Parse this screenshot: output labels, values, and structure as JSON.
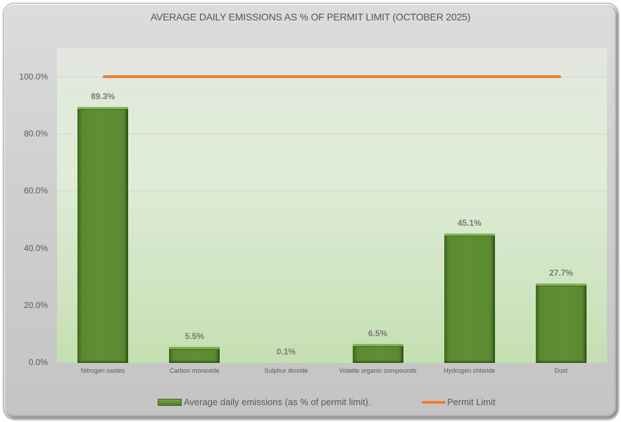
{
  "chart_data": {
    "type": "bar",
    "title": "AVERAGE DAILY EMISSIONS AS % OF PERMIT LIMIT (OCTOBER 2025)",
    "xlabel": "",
    "ylabel": "",
    "ylim": [
      0,
      110
    ],
    "yticks": [
      "0.0%",
      "20.0%",
      "40.0%",
      "60.0%",
      "80.0%",
      "100.0%"
    ],
    "categories": [
      "Nitrogen oxides",
      "Carbon monoxide",
      "Sulphur dioxide",
      "Volatile organic compounds",
      "Hydrogen chloride",
      "Dust"
    ],
    "series": [
      {
        "name": "Average daily emissions (as % of permit limit).",
        "type": "bar",
        "color": "#5b8a31",
        "values": [
          89.3,
          5.5,
          0.1,
          6.5,
          45.1,
          27.7
        ],
        "labels": [
          "89.3%",
          "5.5%",
          "0.1%",
          "6.5%",
          "45.1%",
          "27.7%"
        ]
      },
      {
        "name": "Permit Limit",
        "type": "line",
        "color": "#ed7d31",
        "values": [
          100,
          100,
          100,
          100,
          100,
          100
        ]
      }
    ],
    "grid": true,
    "legend_position": "bottom"
  },
  "legend": {
    "bar_label": "Average daily emissions (as % of permit limit).",
    "line_label": "Permit Limit"
  }
}
